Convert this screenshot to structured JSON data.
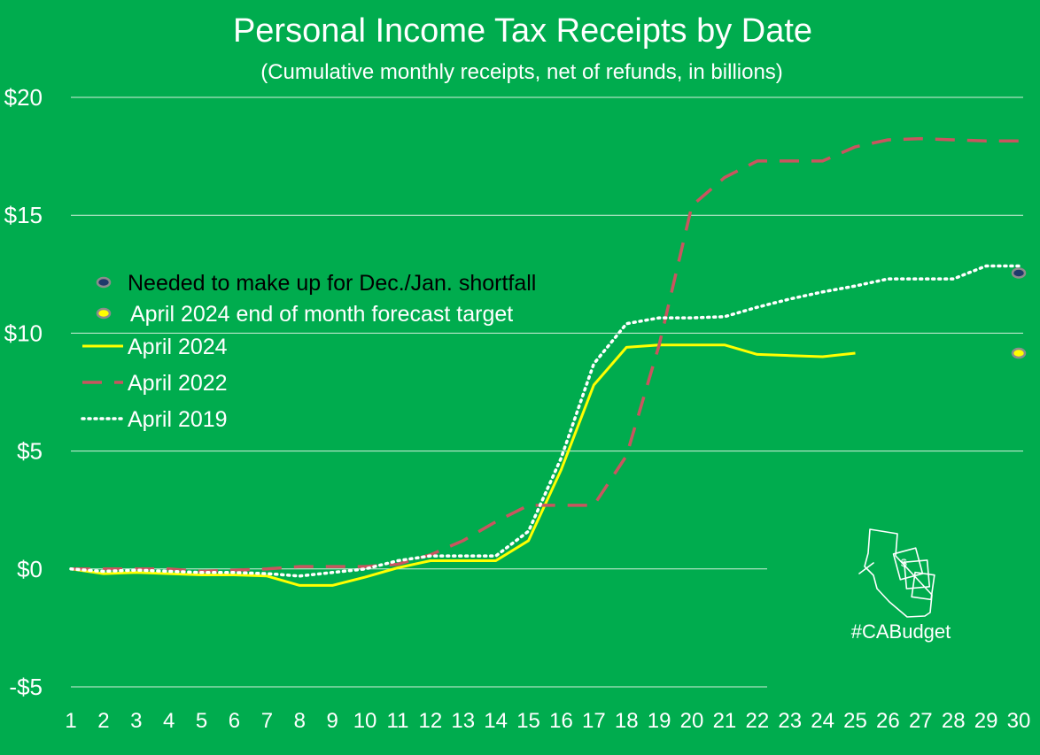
{
  "chart_data": {
    "type": "line",
    "title": "Personal Income Tax Receipts by Date",
    "subtitle": "(Cumulative monthly receipts, net of refunds, in billions)",
    "xlabel": "",
    "ylabel": "",
    "x": [
      1,
      2,
      3,
      4,
      5,
      6,
      7,
      8,
      9,
      10,
      11,
      12,
      13,
      14,
      15,
      16,
      17,
      18,
      19,
      20,
      21,
      22,
      23,
      24,
      25,
      26,
      27,
      28,
      29,
      30
    ],
    "x_ticks": [
      "1",
      "2",
      "3",
      "4",
      "5",
      "6",
      "7",
      "8",
      "9",
      "10",
      "11",
      "12",
      "13",
      "14",
      "15",
      "16",
      "17",
      "18",
      "19",
      "20",
      "21",
      "22",
      "23",
      "24",
      "25",
      "26",
      "27",
      "28",
      "29",
      "30"
    ],
    "ylim": [
      -5,
      20
    ],
    "y_ticks": [
      {
        "value": 20,
        "label": "$20"
      },
      {
        "value": 15,
        "label": "$15"
      },
      {
        "value": 10,
        "label": "$10"
      },
      {
        "value": 5,
        "label": "$5"
      },
      {
        "value": 0,
        "label": "$0"
      },
      {
        "value": -5,
        "label": "-$5"
      }
    ],
    "grid": true,
    "legend_position": "left",
    "series": [
      {
        "name": "April 2024",
        "style": "solid",
        "color": "#FFFF00",
        "values": [
          0.0,
          -0.2,
          -0.15,
          -0.2,
          -0.25,
          -0.25,
          -0.3,
          -0.7,
          -0.7,
          -0.35,
          0.05,
          0.35,
          0.35,
          0.35,
          1.2,
          4.2,
          7.8,
          9.4,
          9.5,
          9.5,
          9.5,
          9.1,
          9.05,
          9.0,
          9.15,
          null,
          null,
          null,
          null,
          null
        ]
      },
      {
        "name": "April 2022",
        "style": "dashed",
        "color": "#C9555F",
        "values": [
          0.0,
          0.0,
          0.0,
          0.0,
          -0.1,
          -0.05,
          0.0,
          0.1,
          0.1,
          0.1,
          0.2,
          0.6,
          1.2,
          2.0,
          2.7,
          2.7,
          2.7,
          4.8,
          9.5,
          15.4,
          16.6,
          17.3,
          17.3,
          17.3,
          17.9,
          18.2,
          18.25,
          18.2,
          18.15,
          18.15
        ]
      },
      {
        "name": "April 2019",
        "style": "dotted",
        "color": "#FFFFFF",
        "values": [
          0.0,
          -0.1,
          -0.05,
          -0.1,
          -0.15,
          -0.15,
          -0.2,
          -0.3,
          -0.15,
          0.0,
          0.35,
          0.55,
          0.55,
          0.55,
          1.6,
          4.7,
          8.7,
          10.4,
          10.65,
          10.65,
          10.7,
          11.1,
          11.45,
          11.75,
          12.0,
          12.3,
          12.3,
          12.3,
          12.85,
          12.85
        ]
      }
    ],
    "markers": [
      {
        "name": "Needed to make up for Dec./Jan. shortfall",
        "x": 30,
        "y": 12.55,
        "color": "#1F3A6B"
      },
      {
        "name": "April 2024 end of month forecast target",
        "x": 30,
        "y": 9.15,
        "color": "#FFFF00"
      }
    ]
  },
  "branding": {
    "hashtag": "#CABudget",
    "logo_icon": "california-map-money-icon"
  },
  "colors": {
    "background": "#00AC4E",
    "grid": "#D4F0DC",
    "text": "#FFFFFF"
  }
}
